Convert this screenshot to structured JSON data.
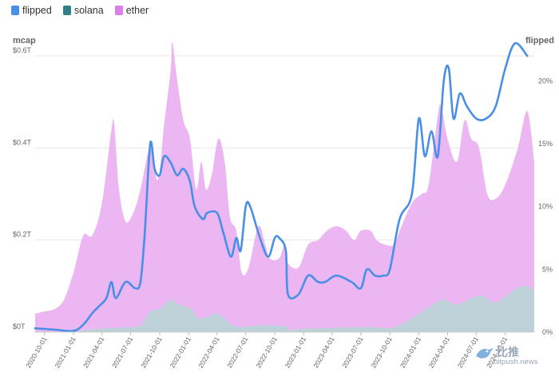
{
  "legend": [
    {
      "label": "flipped",
      "color": "#4a8fe6"
    },
    {
      "label": "solana",
      "color": "#2f7f86"
    },
    {
      "label": "ether",
      "color": "#dd7fe8"
    }
  ],
  "axes": {
    "left_title": "mcap",
    "right_title": "flipped"
  },
  "watermark": {
    "cn": "比推",
    "en": "bitpush.news"
  },
  "chart_data": {
    "type": "area",
    "title": "",
    "x_range": [
      "2020-09-01",
      "2025-01-01"
    ],
    "x_ticks": [
      "2020-10-01",
      "2021-01-01",
      "2021-04-01",
      "2021-07-01",
      "2021-10-01",
      "2022-01-01",
      "2022-04-01",
      "2022-07-01",
      "2022-10-01",
      "2023-01-01",
      "2023-04-01",
      "2023-07-01",
      "2023-10-01",
      "2024-01-01",
      "2024-04-01",
      "2024-07-01",
      "2024-10-01"
    ],
    "y_left": {
      "label": "mcap",
      "range": [
        0,
        0.6
      ],
      "ticks": [
        0,
        0.2,
        0.4,
        0.6
      ],
      "tick_labels": [
        "$0T",
        "$0.2T",
        "$0.4T",
        "$0.6T"
      ]
    },
    "y_right": {
      "label": "flipped",
      "range": [
        0,
        0.22
      ],
      "ticks": [
        0,
        0.05,
        0.1,
        0.15,
        0.2
      ],
      "tick_labels": [
        "0%",
        "5%",
        "10%",
        "15%",
        "20%"
      ]
    },
    "series": [
      {
        "name": "ether",
        "axis": "left",
        "type": "area",
        "color": "#e7a9f0",
        "points": [
          [
            "2020-09-01",
            0.04
          ],
          [
            "2020-10-01",
            0.045
          ],
          [
            "2020-11-01",
            0.05
          ],
          [
            "2020-12-01",
            0.07
          ],
          [
            "2021-01-01",
            0.13
          ],
          [
            "2021-02-01",
            0.21
          ],
          [
            "2021-03-01",
            0.21
          ],
          [
            "2021-04-01",
            0.28
          ],
          [
            "2021-05-01",
            0.44
          ],
          [
            "2021-05-10",
            0.45
          ],
          [
            "2021-05-25",
            0.31
          ],
          [
            "2021-06-15",
            0.24
          ],
          [
            "2021-07-10",
            0.26
          ],
          [
            "2021-08-01",
            0.31
          ],
          [
            "2021-09-01",
            0.4
          ],
          [
            "2021-09-25",
            0.33
          ],
          [
            "2021-10-15",
            0.45
          ],
          [
            "2021-11-05",
            0.57
          ],
          [
            "2021-11-10",
            0.63
          ],
          [
            "2021-11-25",
            0.55
          ],
          [
            "2021-12-15",
            0.46
          ],
          [
            "2022-01-05",
            0.42
          ],
          [
            "2022-01-25",
            0.31
          ],
          [
            "2022-02-10",
            0.37
          ],
          [
            "2022-02-25",
            0.31
          ],
          [
            "2022-03-15",
            0.34
          ],
          [
            "2022-04-05",
            0.42
          ],
          [
            "2022-04-25",
            0.37
          ],
          [
            "2022-05-12",
            0.25
          ],
          [
            "2022-06-01",
            0.22
          ],
          [
            "2022-06-18",
            0.13
          ],
          [
            "2022-07-10",
            0.14
          ],
          [
            "2022-08-10",
            0.23
          ],
          [
            "2022-09-01",
            0.19
          ],
          [
            "2022-09-15",
            0.16
          ],
          [
            "2022-10-15",
            0.16
          ],
          [
            "2022-11-01",
            0.19
          ],
          [
            "2022-11-12",
            0.15
          ],
          [
            "2022-12-15",
            0.14
          ],
          [
            "2023-01-15",
            0.19
          ],
          [
            "2023-02-15",
            0.2
          ],
          [
            "2023-03-15",
            0.22
          ],
          [
            "2023-04-15",
            0.23
          ],
          [
            "2023-05-15",
            0.22
          ],
          [
            "2023-06-10",
            0.2
          ],
          [
            "2023-07-01",
            0.22
          ],
          [
            "2023-08-01",
            0.22
          ],
          [
            "2023-08-20",
            0.2
          ],
          [
            "2023-09-15",
            0.19
          ],
          [
            "2023-10-15",
            0.19
          ],
          [
            "2023-11-01",
            0.22
          ],
          [
            "2023-12-10",
            0.28
          ],
          [
            "2024-01-10",
            0.3
          ],
          [
            "2024-02-01",
            0.32
          ],
          [
            "2024-03-01",
            0.47
          ],
          [
            "2024-03-12",
            0.49
          ],
          [
            "2024-04-01",
            0.42
          ],
          [
            "2024-05-01",
            0.37
          ],
          [
            "2024-05-25",
            0.46
          ],
          [
            "2024-06-15",
            0.42
          ],
          [
            "2024-07-10",
            0.4
          ],
          [
            "2024-08-05",
            0.3
          ],
          [
            "2024-09-01",
            0.29
          ],
          [
            "2024-10-01",
            0.32
          ],
          [
            "2024-11-10",
            0.4
          ],
          [
            "2024-12-10",
            0.48
          ],
          [
            "2025-01-01",
            0.37
          ]
        ]
      },
      {
        "name": "solana",
        "axis": "left",
        "type": "area",
        "color": "#b9d4d6",
        "points": [
          [
            "2020-09-01",
            0.0
          ],
          [
            "2021-01-01",
            0.001
          ],
          [
            "2021-02-01",
            0.004
          ],
          [
            "2021-04-01",
            0.008
          ],
          [
            "2021-06-01",
            0.01
          ],
          [
            "2021-08-01",
            0.015
          ],
          [
            "2021-09-01",
            0.045
          ],
          [
            "2021-10-01",
            0.05
          ],
          [
            "2021-11-05",
            0.07
          ],
          [
            "2021-12-01",
            0.06
          ],
          [
            "2022-01-10",
            0.05
          ],
          [
            "2022-02-01",
            0.03
          ],
          [
            "2022-03-10",
            0.035
          ],
          [
            "2022-04-05",
            0.04
          ],
          [
            "2022-05-15",
            0.018
          ],
          [
            "2022-06-15",
            0.011
          ],
          [
            "2022-08-15",
            0.015
          ],
          [
            "2022-11-08",
            0.012
          ],
          [
            "2022-11-15",
            0.005
          ],
          [
            "2023-01-15",
            0.008
          ],
          [
            "2023-04-15",
            0.009
          ],
          [
            "2023-07-15",
            0.011
          ],
          [
            "2023-10-01",
            0.009
          ],
          [
            "2023-11-15",
            0.02
          ],
          [
            "2024-01-01",
            0.04
          ],
          [
            "2024-03-15",
            0.07
          ],
          [
            "2024-05-01",
            0.06
          ],
          [
            "2024-07-15",
            0.08
          ],
          [
            "2024-09-01",
            0.065
          ],
          [
            "2024-11-20",
            0.1
          ],
          [
            "2025-01-01",
            0.09
          ]
        ]
      },
      {
        "name": "flipped",
        "axis": "right",
        "type": "line",
        "color": "#4a8fe6",
        "points": [
          [
            "2020-09-01",
            0.003
          ],
          [
            "2020-11-01",
            0.002
          ],
          [
            "2021-01-01",
            0.001
          ],
          [
            "2021-02-01",
            0.006
          ],
          [
            "2021-03-01",
            0.015
          ],
          [
            "2021-03-20",
            0.02
          ],
          [
            "2021-04-15",
            0.027
          ],
          [
            "2021-05-01",
            0.04
          ],
          [
            "2021-05-15",
            0.027
          ],
          [
            "2021-06-15",
            0.04
          ],
          [
            "2021-07-15",
            0.035
          ],
          [
            "2021-08-01",
            0.04
          ],
          [
            "2021-08-15",
            0.08
          ],
          [
            "2021-09-01",
            0.15
          ],
          [
            "2021-09-15",
            0.13
          ],
          [
            "2021-10-01",
            0.125
          ],
          [
            "2021-10-15",
            0.14
          ],
          [
            "2021-11-05",
            0.135
          ],
          [
            "2021-11-25",
            0.125
          ],
          [
            "2021-12-15",
            0.13
          ],
          [
            "2022-01-05",
            0.12
          ],
          [
            "2022-01-20",
            0.1
          ],
          [
            "2022-02-15",
            0.09
          ],
          [
            "2022-03-01",
            0.095
          ],
          [
            "2022-04-01",
            0.095
          ],
          [
            "2022-04-20",
            0.08
          ],
          [
            "2022-05-15",
            0.06
          ],
          [
            "2022-06-01",
            0.075
          ],
          [
            "2022-06-15",
            0.065
          ],
          [
            "2022-07-01",
            0.1
          ],
          [
            "2022-07-15",
            0.1
          ],
          [
            "2022-08-15",
            0.075
          ],
          [
            "2022-09-10",
            0.06
          ],
          [
            "2022-10-01",
            0.075
          ],
          [
            "2022-10-15",
            0.075
          ],
          [
            "2022-11-05",
            0.065
          ],
          [
            "2022-11-12",
            0.03
          ],
          [
            "2022-12-15",
            0.03
          ],
          [
            "2023-01-15",
            0.045
          ],
          [
            "2023-02-15",
            0.04
          ],
          [
            "2023-03-10",
            0.04
          ],
          [
            "2023-04-15",
            0.045
          ],
          [
            "2023-06-01",
            0.04
          ],
          [
            "2023-07-01",
            0.035
          ],
          [
            "2023-07-20",
            0.05
          ],
          [
            "2023-08-15",
            0.045
          ],
          [
            "2023-09-10",
            0.045
          ],
          [
            "2023-10-01",
            0.05
          ],
          [
            "2023-11-01",
            0.09
          ],
          [
            "2023-12-10",
            0.11
          ],
          [
            "2024-01-01",
            0.17
          ],
          [
            "2024-01-20",
            0.14
          ],
          [
            "2024-02-10",
            0.16
          ],
          [
            "2024-03-01",
            0.14
          ],
          [
            "2024-03-20",
            0.2
          ],
          [
            "2024-04-05",
            0.21
          ],
          [
            "2024-04-20",
            0.17
          ],
          [
            "2024-05-10",
            0.19
          ],
          [
            "2024-06-01",
            0.18
          ],
          [
            "2024-07-01",
            0.17
          ],
          [
            "2024-08-01",
            0.17
          ],
          [
            "2024-09-01",
            0.18
          ],
          [
            "2024-10-01",
            0.21
          ],
          [
            "2024-11-01",
            0.23
          ],
          [
            "2024-12-10",
            0.22
          ]
        ]
      }
    ]
  }
}
